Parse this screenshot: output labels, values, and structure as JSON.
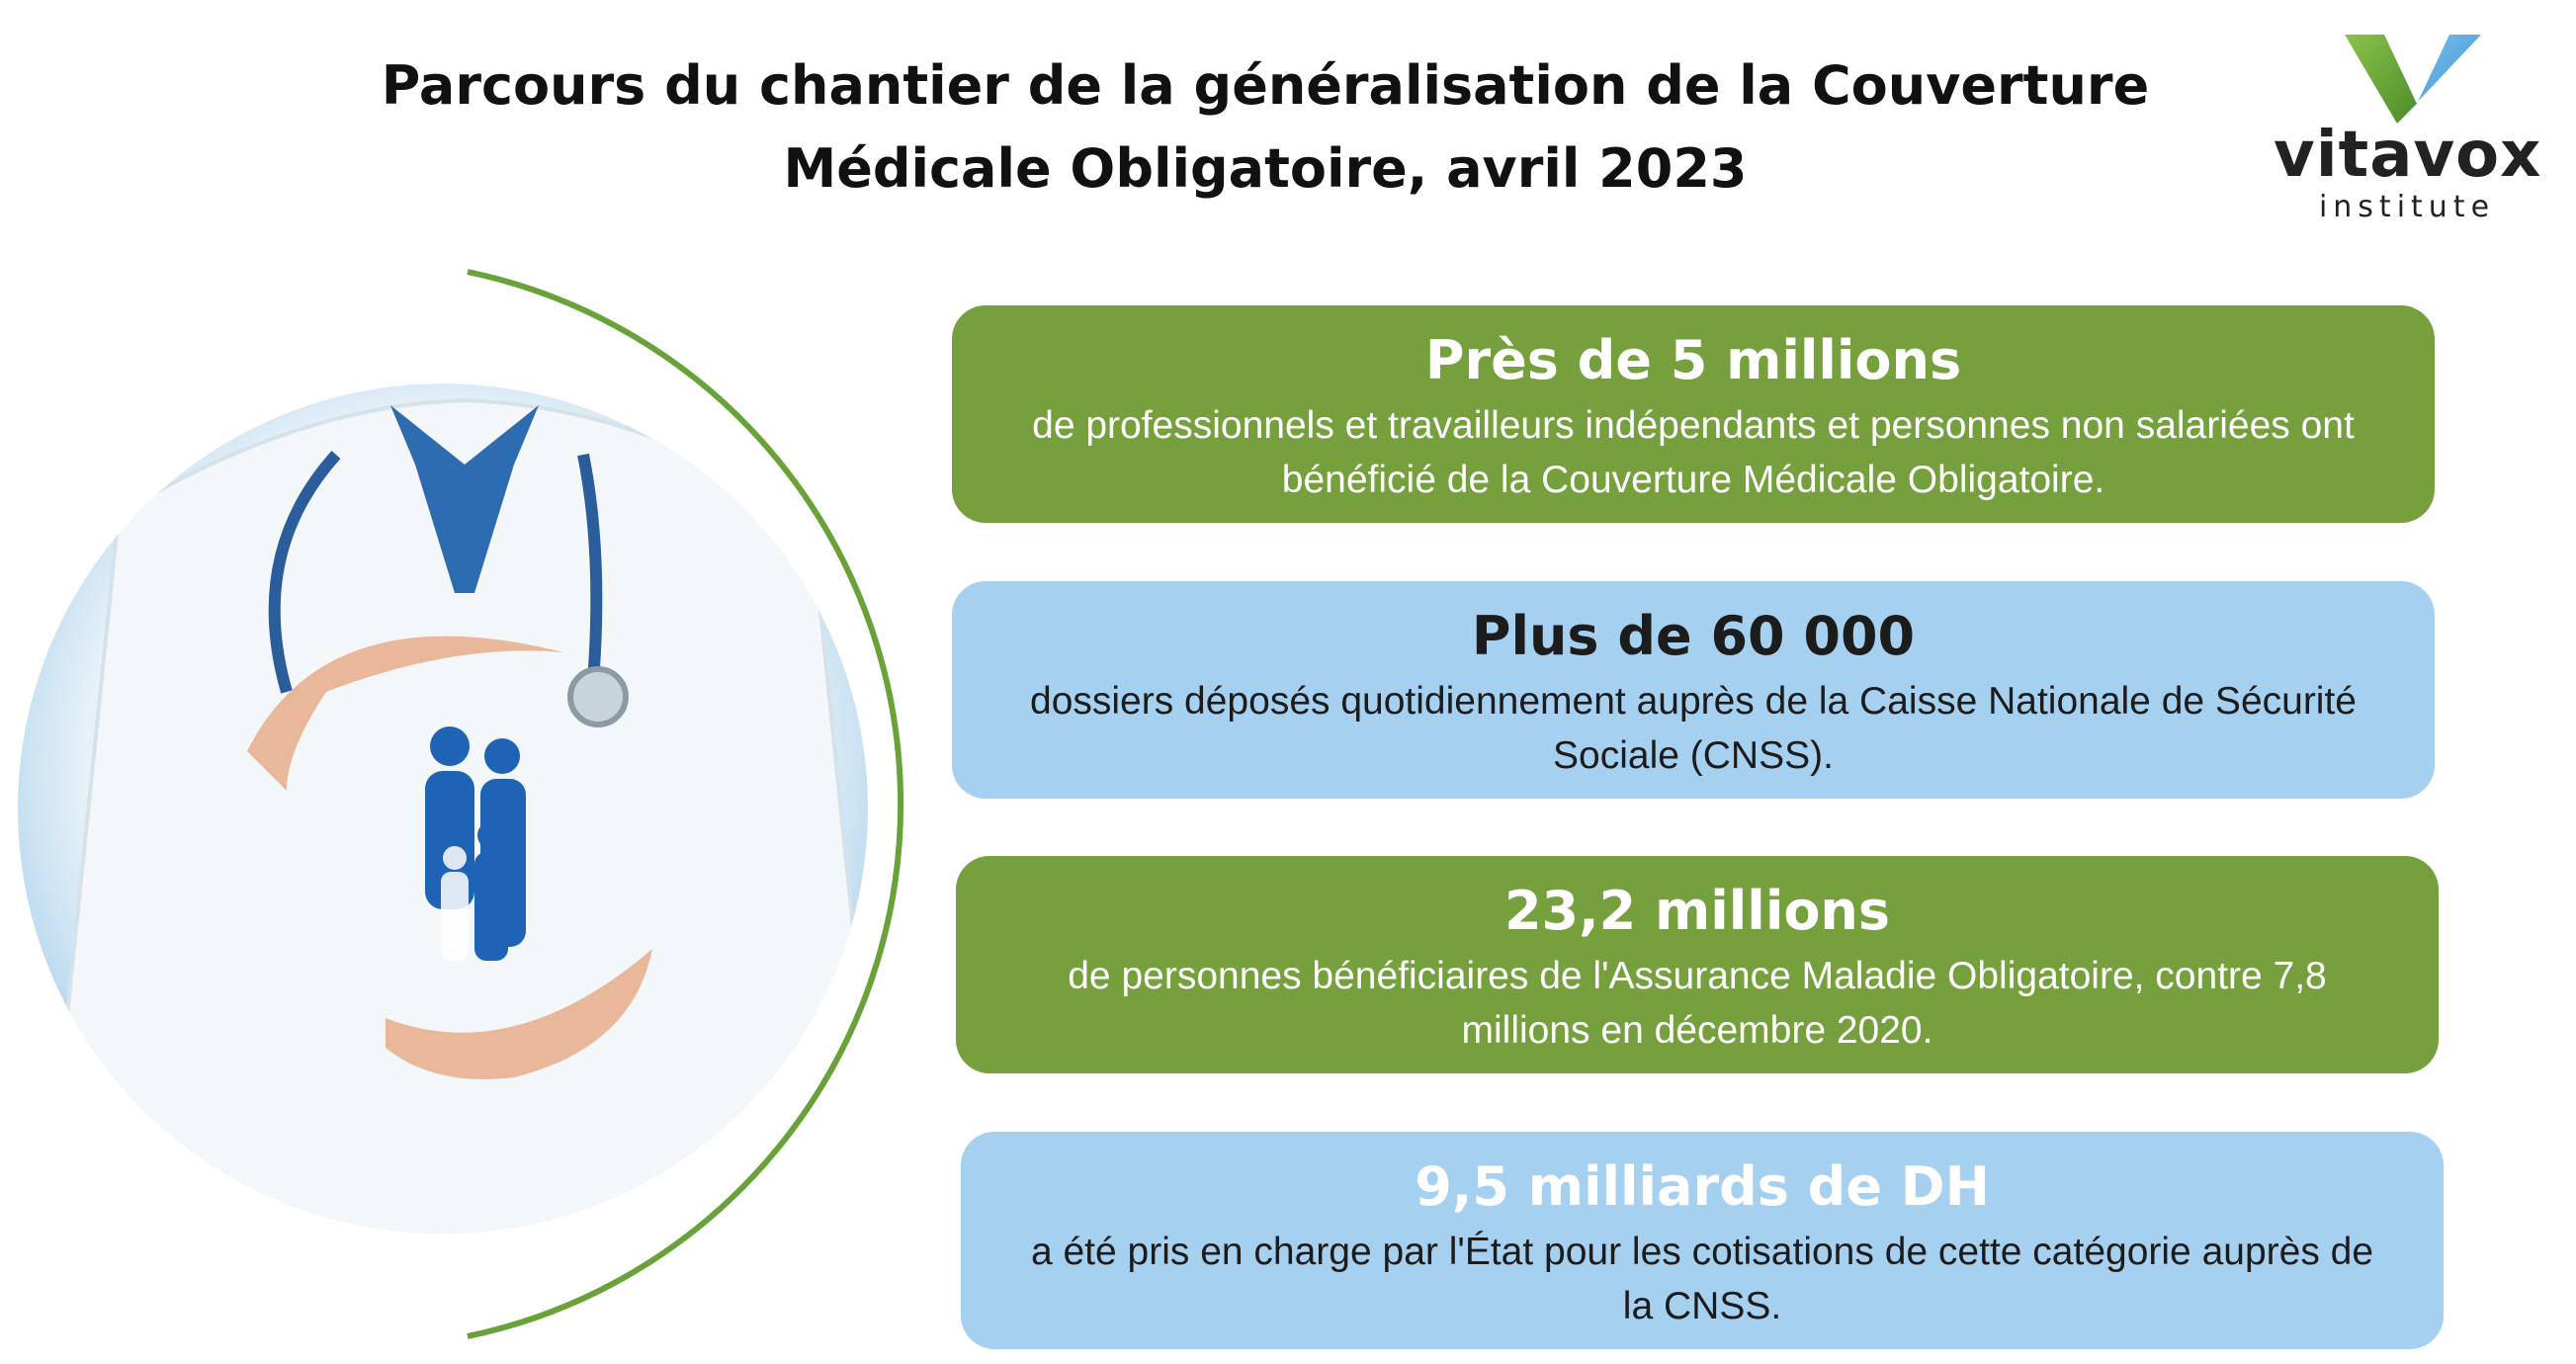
{
  "header": {
    "title": [
      "Parcours du chantier de la généralisation de la Couverture",
      "Médicale Obligatoire, avril 2023"
    ]
  },
  "logo": {
    "name": "vitavox",
    "tagline": "institute"
  },
  "cards": [
    {
      "heading": "Près de 5 millions",
      "text": "de professionnels et travailleurs indépendants et personnes non salariées ont bénéficié de la Couverture Médicale Obligatoire."
    },
    {
      "heading": "Plus de 60 000",
      "text": "dossiers déposés quotidiennement auprès de la Caisse Nationale de Sécurité Sociale (CNSS)."
    },
    {
      "heading": "23,2 millions",
      "text": "de personnes bénéficiaires de l'Assurance Maladie Obligatoire, contre 7,8 millions en décembre 2020."
    },
    {
      "heading": "9,5 milliards de DH",
      "text": "a été pris en charge par l'État pour les cotisations de cette catégorie auprès de la CNSS."
    }
  ]
}
